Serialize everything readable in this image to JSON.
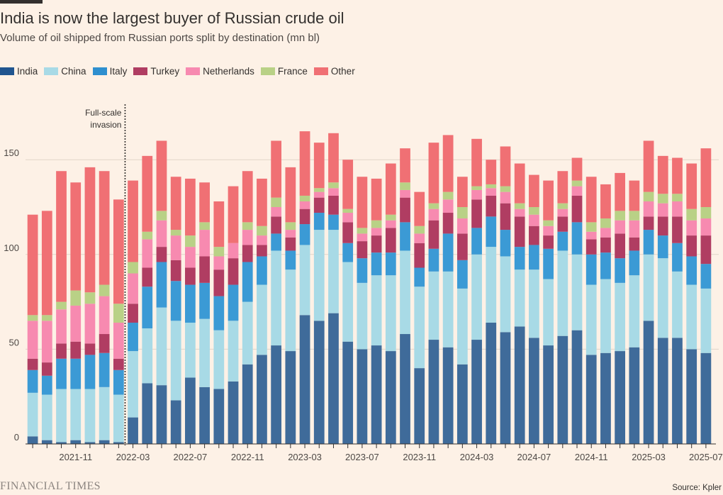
{
  "title": "India is now the largest buyer of Russian crude oil",
  "subtitle": "Volume of oil shipped from Russian ports split by destination (mn bl)",
  "source": "Source: Kpler",
  "brand": "FINANCIAL TIMES",
  "colors": {
    "background": "#fdf1e6",
    "India": "#3f6b9a",
    "China": "#a8dae6",
    "Italy": "#3b9ad5",
    "Turkey": "#b03d62",
    "Netherlands": "#f78ab0",
    "France": "#b9d186",
    "Other": "#f07074",
    "legend_India": "#20558f",
    "legend_Italy": "#2e8fcf"
  },
  "chart_data": {
    "type": "bar",
    "stacked": true,
    "title": "India is now the largest buyer of Russian crude oil",
    "subtitle": "Volume of oil shipped from Russian ports split by destination (mn bl)",
    "ylim": [
      0,
      170
    ],
    "yticks": [
      0,
      50,
      100,
      150
    ],
    "grid": true,
    "legend_position": "top-left",
    "x_tick_labels": [
      "2021-11",
      "2022-03",
      "2022-07",
      "2022-11",
      "2023-03",
      "2023-07",
      "2023-11",
      "2024-03",
      "2024-07",
      "2024-11",
      "2025-03",
      "2025-07"
    ],
    "annotation": {
      "text": [
        "Full-scale",
        "invasion"
      ],
      "between": [
        "2022-02",
        "2022-03"
      ]
    },
    "categories": [
      "2021-08",
      "2021-09",
      "2021-10",
      "2021-11",
      "2021-12",
      "2022-01",
      "2022-02",
      "2022-03",
      "2022-04",
      "2022-05",
      "2022-06",
      "2022-07",
      "2022-08",
      "2022-09",
      "2022-10",
      "2022-11",
      "2022-12",
      "2023-01",
      "2023-02",
      "2023-03",
      "2023-04",
      "2023-05",
      "2023-06",
      "2023-07",
      "2023-08",
      "2023-09",
      "2023-10",
      "2023-11",
      "2023-12",
      "2024-01",
      "2024-02",
      "2024-03",
      "2024-04",
      "2024-05",
      "2024-06",
      "2024-07",
      "2024-08",
      "2024-09",
      "2024-10",
      "2024-11",
      "2024-12",
      "2025-01",
      "2025-02",
      "2025-03",
      "2025-04",
      "2025-05",
      "2025-06",
      "2025-07"
    ],
    "series": [
      {
        "name": "India",
        "values": [
          4,
          2,
          1,
          2,
          1,
          2,
          1,
          14,
          32,
          31,
          23,
          35,
          30,
          29,
          33,
          42,
          47,
          52,
          49,
          68,
          65,
          69,
          54,
          50,
          52,
          49,
          58,
          40,
          55,
          51,
          42,
          55,
          64,
          59,
          62,
          56,
          52,
          57,
          60,
          47,
          48,
          49,
          51,
          65,
          56,
          56,
          50,
          48
        ]
      },
      {
        "name": "China",
        "values": [
          23,
          24,
          28,
          27,
          28,
          28,
          25,
          35,
          29,
          41,
          42,
          29,
          36,
          31,
          32,
          33,
          37,
          50,
          43,
          37,
          48,
          44,
          42,
          35,
          37,
          40,
          44,
          43,
          36,
          40,
          40,
          45,
          40,
          40,
          30,
          36,
          35,
          45,
          40,
          37,
          39,
          36,
          38,
          35,
          42,
          35,
          34,
          34
        ]
      },
      {
        "name": "Italy",
        "values": [
          12,
          10,
          16,
          16,
          18,
          18,
          13,
          15,
          22,
          24,
          21,
          20,
          19,
          18,
          19,
          21,
          15,
          9,
          10,
          11,
          9,
          8,
          10,
          13,
          12,
          12,
          15,
          10,
          12,
          20,
          15,
          14,
          16,
          14,
          12,
          13,
          16,
          10,
          17,
          16,
          14,
          13,
          13,
          13,
          12,
          15,
          15,
          13
        ]
      },
      {
        "name": "Turkey",
        "values": [
          6,
          7,
          8,
          9,
          6,
          10,
          6,
          10,
          10,
          8,
          11,
          9,
          14,
          14,
          14,
          9,
          6,
          9,
          7,
          8,
          8,
          10,
          11,
          9,
          9,
          13,
          13,
          13,
          15,
          11,
          14,
          15,
          11,
          14,
          16,
          10,
          7,
          8,
          14,
          8,
          8,
          13,
          7,
          7,
          10,
          14,
          11,
          15
        ]
      },
      {
        "name": "Netherlands",
        "values": [
          20,
          22,
          18,
          19,
          21,
          20,
          19,
          16,
          15,
          14,
          13,
          11,
          14,
          7,
          8,
          8,
          5,
          5,
          4,
          4,
          3,
          4,
          5,
          4,
          4,
          4,
          4,
          5,
          6,
          7,
          8,
          5,
          4,
          6,
          4,
          6,
          5,
          4,
          5,
          4,
          5,
          7,
          9,
          8,
          7,
          8,
          8,
          9
        ]
      },
      {
        "name": "France",
        "values": [
          3,
          3,
          4,
          8,
          6,
          6,
          10,
          6,
          4,
          5,
          3,
          6,
          4,
          5,
          0,
          4,
          5,
          5,
          4,
          3,
          2,
          3,
          2,
          3,
          4,
          3,
          4,
          4,
          3,
          4,
          6,
          2,
          2,
          3,
          3,
          4,
          3,
          3,
          3,
          5,
          5,
          5,
          5,
          5,
          5,
          4,
          6,
          6
        ]
      },
      {
        "name": "Other",
        "values": [
          53,
          55,
          69,
          57,
          66,
          60,
          55,
          43,
          40,
          37,
          28,
          30,
          21,
          24,
          30,
          27,
          25,
          30,
          29,
          34,
          24,
          26,
          26,
          27,
          22,
          27,
          18,
          18,
          32,
          30,
          16,
          25,
          13,
          21,
          21,
          17,
          21,
          17,
          12,
          24,
          18,
          20,
          16,
          27,
          20,
          19,
          24,
          31
        ]
      }
    ]
  }
}
